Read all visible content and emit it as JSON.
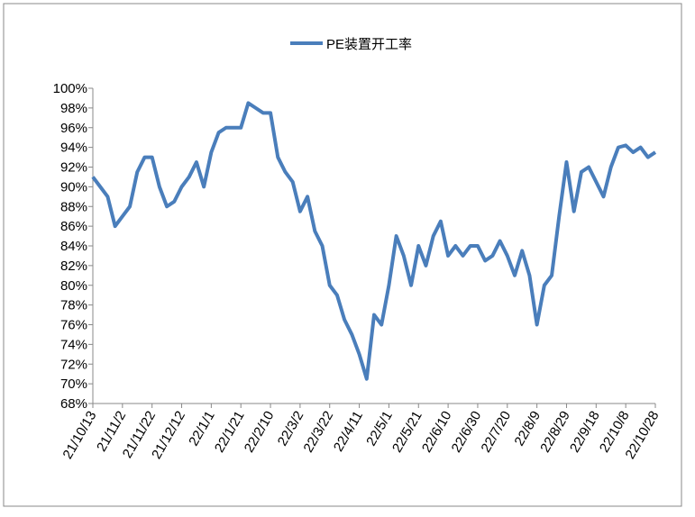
{
  "chart_data": {
    "type": "line",
    "series": [
      {
        "name": "PE装置开工率",
        "color": "#4a7ebb",
        "values": [
          91,
          90,
          89,
          86,
          87,
          88,
          91.5,
          93,
          93,
          90,
          88,
          88.5,
          90,
          91,
          92.5,
          90,
          93.5,
          95.5,
          96,
          96,
          96,
          98.5,
          98,
          97.5,
          97.5,
          93,
          91.5,
          90.5,
          87.5,
          89,
          85.5,
          84,
          80,
          79,
          76.5,
          75,
          73,
          70.5,
          77,
          76,
          80,
          85,
          83,
          80,
          84,
          82,
          85,
          86.5,
          83,
          84,
          83,
          84,
          84,
          82.5,
          83,
          84.5,
          83,
          81,
          83.5,
          81,
          76,
          80,
          81,
          87,
          92.5,
          87.5,
          91.5,
          92,
          90.5,
          89,
          92,
          94,
          94.2,
          93.5,
          94,
          93,
          93.5
        ]
      }
    ],
    "categories": [
      "21/10/13",
      null,
      null,
      null,
      "21/11/2",
      null,
      null,
      null,
      "21/11/22",
      null,
      null,
      null,
      "21/12/12",
      null,
      null,
      null,
      "22/1/1",
      null,
      null,
      null,
      "22/1/21",
      null,
      null,
      null,
      "22/2/10",
      null,
      null,
      null,
      "22/3/2",
      null,
      null,
      null,
      "22/3/22",
      null,
      null,
      null,
      "22/4/11",
      null,
      null,
      null,
      "22/5/1",
      null,
      null,
      null,
      "22/5/21",
      null,
      null,
      null,
      "22/6/10",
      null,
      null,
      null,
      "22/6/30",
      null,
      null,
      null,
      "22/7/20",
      null,
      null,
      null,
      "22/8/9",
      null,
      null,
      null,
      "22/8/29",
      null,
      null,
      null,
      "22/9/18",
      null,
      null,
      null,
      "22/10/8",
      null,
      null,
      null,
      "22/10/28"
    ],
    "ylim": [
      68,
      100
    ],
    "yticks": [
      {
        "value": 68,
        "label": "68%"
      },
      {
        "value": 70,
        "label": "70%"
      },
      {
        "value": 72,
        "label": "72%"
      },
      {
        "value": 74,
        "label": "74%"
      },
      {
        "value": 76,
        "label": "76%"
      },
      {
        "value": 78,
        "label": "78%"
      },
      {
        "value": 80,
        "label": "80%"
      },
      {
        "value": 82,
        "label": "82%"
      },
      {
        "value": 84,
        "label": "84%"
      },
      {
        "value": 86,
        "label": "86%"
      },
      {
        "value": 88,
        "label": "88%"
      },
      {
        "value": 90,
        "label": "90%"
      },
      {
        "value": 92,
        "label": "92%"
      },
      {
        "value": 94,
        "label": "94%"
      },
      {
        "value": 96,
        "label": "96%"
      },
      {
        "value": 98,
        "label": "98%"
      },
      {
        "value": 100,
        "label": "100%"
      }
    ],
    "legend": "top"
  }
}
